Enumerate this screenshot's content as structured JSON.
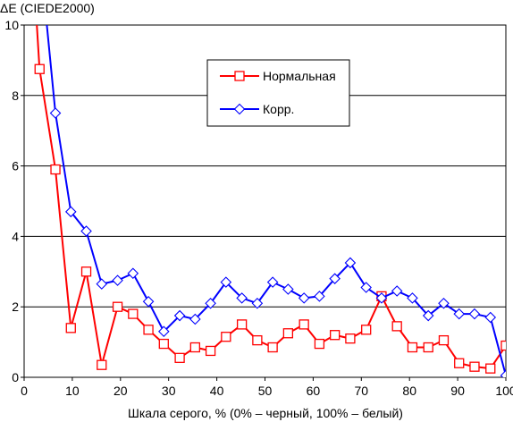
{
  "chart_data": {
    "type": "line",
    "title": "",
    "ylabel": "ΔE (CIEDE2000)",
    "xlabel": "Шкала серого, % (0% – черный, 100% – белый)",
    "xlim": [
      0,
      100
    ],
    "ylim": [
      0,
      10
    ],
    "x_ticks": [
      0,
      10,
      20,
      30,
      40,
      50,
      60,
      70,
      80,
      90,
      100
    ],
    "y_ticks": [
      0,
      2,
      4,
      6,
      8,
      10
    ],
    "x_tick_labels": [
      "0",
      "10",
      "20",
      "30",
      "40",
      "50",
      "60",
      "70",
      "80",
      "90",
      "100"
    ],
    "y_tick_labels": [
      "0",
      "2",
      "4",
      "6",
      "8",
      "10"
    ],
    "grid": "horizontal",
    "legend_position": "top-center",
    "series": [
      {
        "name": "Нормальная",
        "color": "#ff0000",
        "marker": "square",
        "x": [
          3.2,
          6.5,
          9.7,
          12.9,
          16.1,
          19.4,
          22.6,
          25.8,
          29.0,
          32.3,
          35.5,
          38.7,
          41.9,
          45.2,
          48.4,
          51.6,
          54.8,
          58.1,
          61.3,
          64.5,
          67.7,
          71.0,
          74.2,
          77.4,
          80.6,
          83.9,
          87.1,
          90.3,
          93.5,
          96.8,
          100.0
        ],
        "values": [
          8.75,
          5.9,
          1.4,
          3.0,
          0.35,
          2.0,
          1.8,
          1.35,
          0.95,
          0.55,
          0.85,
          0.75,
          1.15,
          1.5,
          1.05,
          0.85,
          1.25,
          1.5,
          0.95,
          1.2,
          1.1,
          1.35,
          2.3,
          1.45,
          0.85,
          0.85,
          1.05,
          0.4,
          0.3,
          0.25,
          0.9
        ],
        "line_start": [
          2.5,
          10.3
        ]
      },
      {
        "name": "Корр.",
        "color": "#0000ff",
        "marker": "diamond",
        "x": [
          6.5,
          9.7,
          12.9,
          16.1,
          19.4,
          22.6,
          25.8,
          29.0,
          32.3,
          35.5,
          38.7,
          41.9,
          45.2,
          48.4,
          51.6,
          54.8,
          58.1,
          61.3,
          64.5,
          67.7,
          71.0,
          74.2,
          77.4,
          80.6,
          83.9,
          87.1,
          90.3,
          93.5,
          96.8,
          100.0
        ],
        "values": [
          7.5,
          4.7,
          4.15,
          2.65,
          2.75,
          2.95,
          2.15,
          1.3,
          1.75,
          1.65,
          2.1,
          2.7,
          2.25,
          2.1,
          2.7,
          2.5,
          2.25,
          2.3,
          2.8,
          3.25,
          2.55,
          2.25,
          2.45,
          2.25,
          1.75,
          2.1,
          1.8,
          1.8,
          1.7,
          0.05
        ],
        "line_start": [
          4.5,
          10.3
        ]
      }
    ]
  }
}
